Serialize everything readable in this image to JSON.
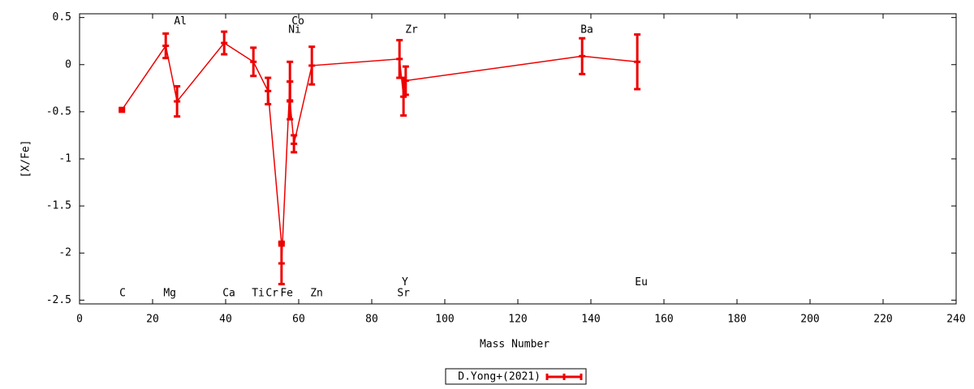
{
  "chart_data": {
    "type": "errorline",
    "xlabel": "Mass Number",
    "ylabel": "[X/Fe]",
    "xlim": [
      0,
      240
    ],
    "xticks": [
      0,
      20,
      40,
      60,
      80,
      100,
      120,
      140,
      160,
      180,
      200,
      220,
      240
    ],
    "ylim": [
      -2.54,
      0.54
    ],
    "yticks": [
      0.5,
      0,
      -0.5,
      -1,
      -1.5,
      -2,
      -2.5
    ],
    "series": [
      {
        "name": "D.Yong+(2021)",
        "color": "#ee0000",
        "x": [
          11.6,
          23.6,
          26.7,
          39.6,
          47.6,
          51.6,
          55.3,
          55.3,
          57.6,
          57.6,
          58.7,
          63.6,
          87.6,
          88.7,
          89.3,
          137.6,
          152.7
        ],
        "values": [
          -0.48,
          0.2,
          -0.39,
          0.23,
          0.03,
          -0.28,
          -1.9,
          -2.11,
          -0.18,
          -0.38,
          -0.84,
          -0.01,
          0.06,
          -0.34,
          -0.17,
          0.09,
          0.03
        ],
        "errors": [
          0.02,
          0.13,
          0.16,
          0.12,
          0.15,
          0.14,
          0.02,
          0.22,
          0.21,
          0.2,
          0.09,
          0.2,
          0.2,
          0.2,
          0.15,
          0.19,
          0.29
        ]
      }
    ],
    "annotations": [
      {
        "text": "C",
        "x": 11.8,
        "y": -2.43
      },
      {
        "text": "Mg",
        "x": 24.7,
        "y": -2.43
      },
      {
        "text": "Ca",
        "x": 40.9,
        "y": -2.43
      },
      {
        "text": "Ti",
        "x": 48.9,
        "y": -2.43
      },
      {
        "text": "Cr",
        "x": 52.7,
        "y": -2.43
      },
      {
        "text": "Fe",
        "x": 56.7,
        "y": -2.43
      },
      {
        "text": "Zn",
        "x": 64.9,
        "y": -2.43
      },
      {
        "text": "Sr",
        "x": 88.7,
        "y": -2.43
      },
      {
        "text": "Y",
        "x": 89.1,
        "y": -2.31
      },
      {
        "text": "Eu",
        "x": 153.8,
        "y": -2.31
      },
      {
        "text": "Al",
        "x": 27.6,
        "y": 0.46
      },
      {
        "text": "Co",
        "x": 59.8,
        "y": 0.46
      },
      {
        "text": "Ni",
        "x": 58.9,
        "y": 0.37
      },
      {
        "text": "Zr",
        "x": 90.9,
        "y": 0.37
      },
      {
        "text": "Ba",
        "x": 138.9,
        "y": 0.37
      }
    ]
  }
}
